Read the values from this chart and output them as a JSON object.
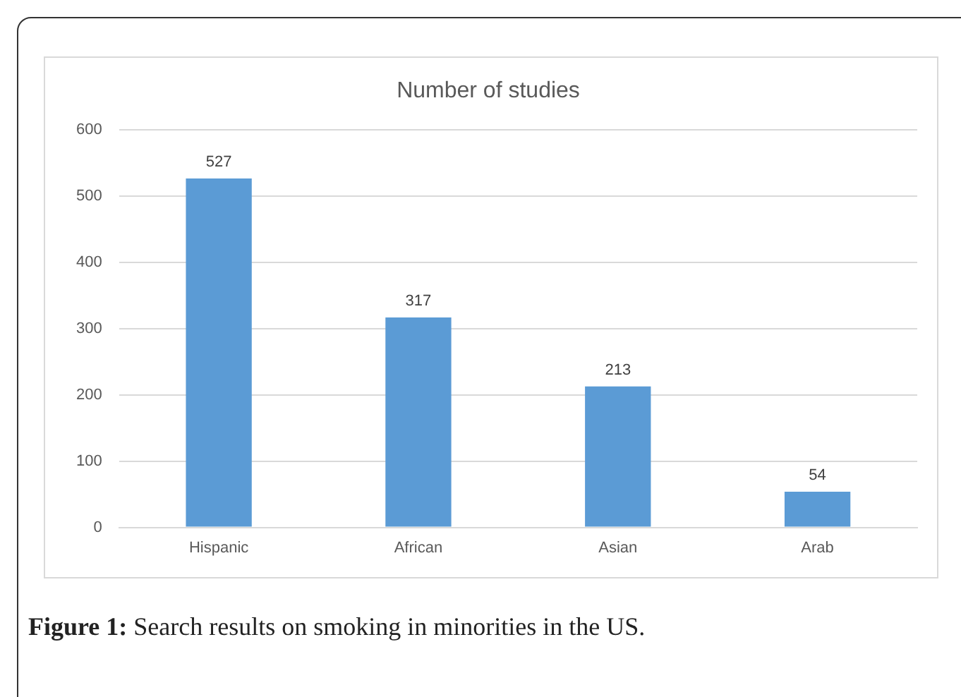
{
  "chart_data": {
    "type": "bar",
    "title": "Number of studies",
    "categories": [
      "Hispanic",
      "African",
      "Asian",
      "Arab"
    ],
    "values": [
      527,
      317,
      213,
      54
    ],
    "color": "#5b9bd5",
    "ylim": [
      0,
      600
    ],
    "yticks": [
      0,
      100,
      200,
      300,
      400,
      500,
      600
    ],
    "grid": "y",
    "legend": false,
    "data_labels": true,
    "annotations": [
      "Figure 1: Search results on smoking in minorities in the US."
    ]
  }
}
